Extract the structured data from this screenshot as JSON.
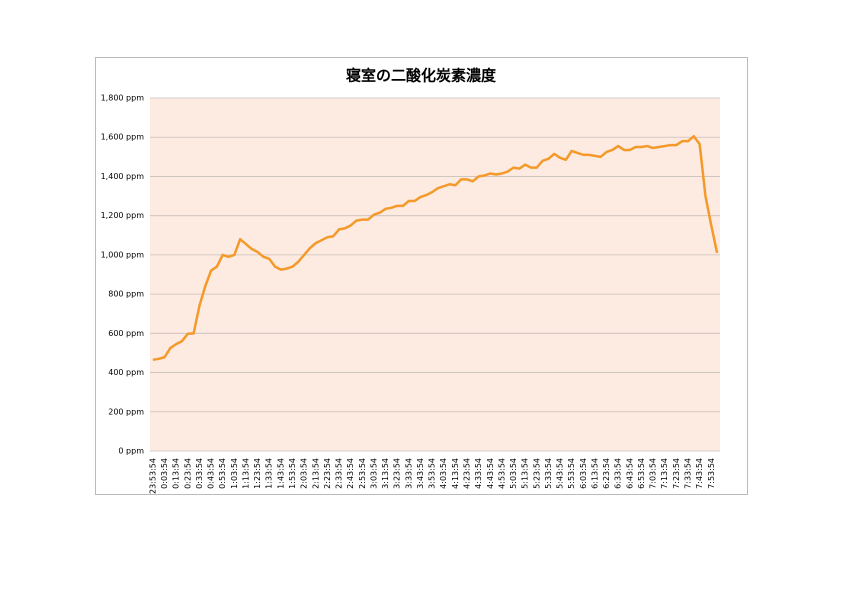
{
  "chart_data": {
    "type": "line",
    "title": "寝室の二酸化炭素濃度",
    "categories": [
      "23:53:54",
      null,
      "0:03:54",
      null,
      "0:13:54",
      null,
      "0:23:54",
      null,
      "0:33:54",
      null,
      "0:43:54",
      null,
      "0:53:54",
      null,
      "1:03:54",
      null,
      "1:13:54",
      null,
      "1:23:54",
      null,
      "1:33:54",
      null,
      "1:43:54",
      null,
      "1:53:54",
      null,
      "2:03:54",
      null,
      "2:13:54",
      null,
      "2:23:54",
      null,
      "2:33:54",
      null,
      "2:43:54",
      null,
      "2:53:54",
      null,
      "3:03:54",
      null,
      "3:13:54",
      null,
      "3:23:54",
      null,
      "3:33:54",
      null,
      "3:43:54",
      null,
      "3:53:54",
      null,
      "4:03:54",
      null,
      "4:13:54",
      null,
      "4:23:54",
      null,
      "4:33:54",
      null,
      "4:43:54",
      null,
      "4:53:54",
      null,
      "5:03:54",
      null,
      "5:13:54",
      null,
      "5:23:54",
      null,
      "5:33:54",
      null,
      "5:43:54",
      null,
      "5:53:54",
      null,
      "6:03:54",
      null,
      "6:13:54",
      null,
      "6:23:54",
      null,
      "6:33:54",
      null,
      "6:43:54",
      null,
      "6:53:54",
      null,
      "7:03:54",
      null,
      "7:13:54",
      null,
      "7:23:54",
      null,
      "7:33:54",
      null,
      "7:43:54",
      null,
      "7:53:54",
      null
    ],
    "series": [
      {
        "color": "#f39a2b",
        "values": [
          465,
          470,
          478,
          525,
          545,
          560,
          598,
          600,
          740,
          840,
          920,
          940,
          1000,
          990,
          1000,
          1080,
          1055,
          1030,
          1015,
          990,
          980,
          940,
          925,
          930,
          940,
          965,
          1000,
          1035,
          1060,
          1075,
          1090,
          1095,
          1130,
          1135,
          1150,
          1175,
          1180,
          1180,
          1205,
          1215,
          1235,
          1240,
          1250,
          1250,
          1275,
          1275,
          1295,
          1305,
          1320,
          1340,
          1350,
          1360,
          1355,
          1385,
          1385,
          1375,
          1400,
          1405,
          1415,
          1410,
          1415,
          1425,
          1445,
          1440,
          1460,
          1445,
          1445,
          1480,
          1490,
          1515,
          1495,
          1485,
          1530,
          1520,
          1510,
          1510,
          1505,
          1500,
          1525,
          1535,
          1555,
          1535,
          1535,
          1550,
          1550,
          1555,
          1545,
          1550,
          1555,
          1560,
          1560,
          1580,
          1580,
          1605,
          1565,
          1300,
          1150,
          1010
        ]
      }
    ],
    "ylim": [
      0,
      1800
    ],
    "yticks": [
      {
        "value": 0,
        "label": "0 ppm"
      },
      {
        "value": 200,
        "label": "200 ppm"
      },
      {
        "value": 400,
        "label": "400 ppm"
      },
      {
        "value": 600,
        "label": "600 ppm"
      },
      {
        "value": 800,
        "label": "800 ppm"
      },
      {
        "value": 1000,
        "label": "1,000 ppm"
      },
      {
        "value": 1200,
        "label": "1,200 ppm"
      },
      {
        "value": 1400,
        "label": "1,400 ppm"
      },
      {
        "value": 1600,
        "label": "1,600 ppm"
      },
      {
        "value": 1800,
        "label": "1,800 ppm"
      }
    ],
    "grid": true,
    "plot_background": "#fdeae1"
  }
}
